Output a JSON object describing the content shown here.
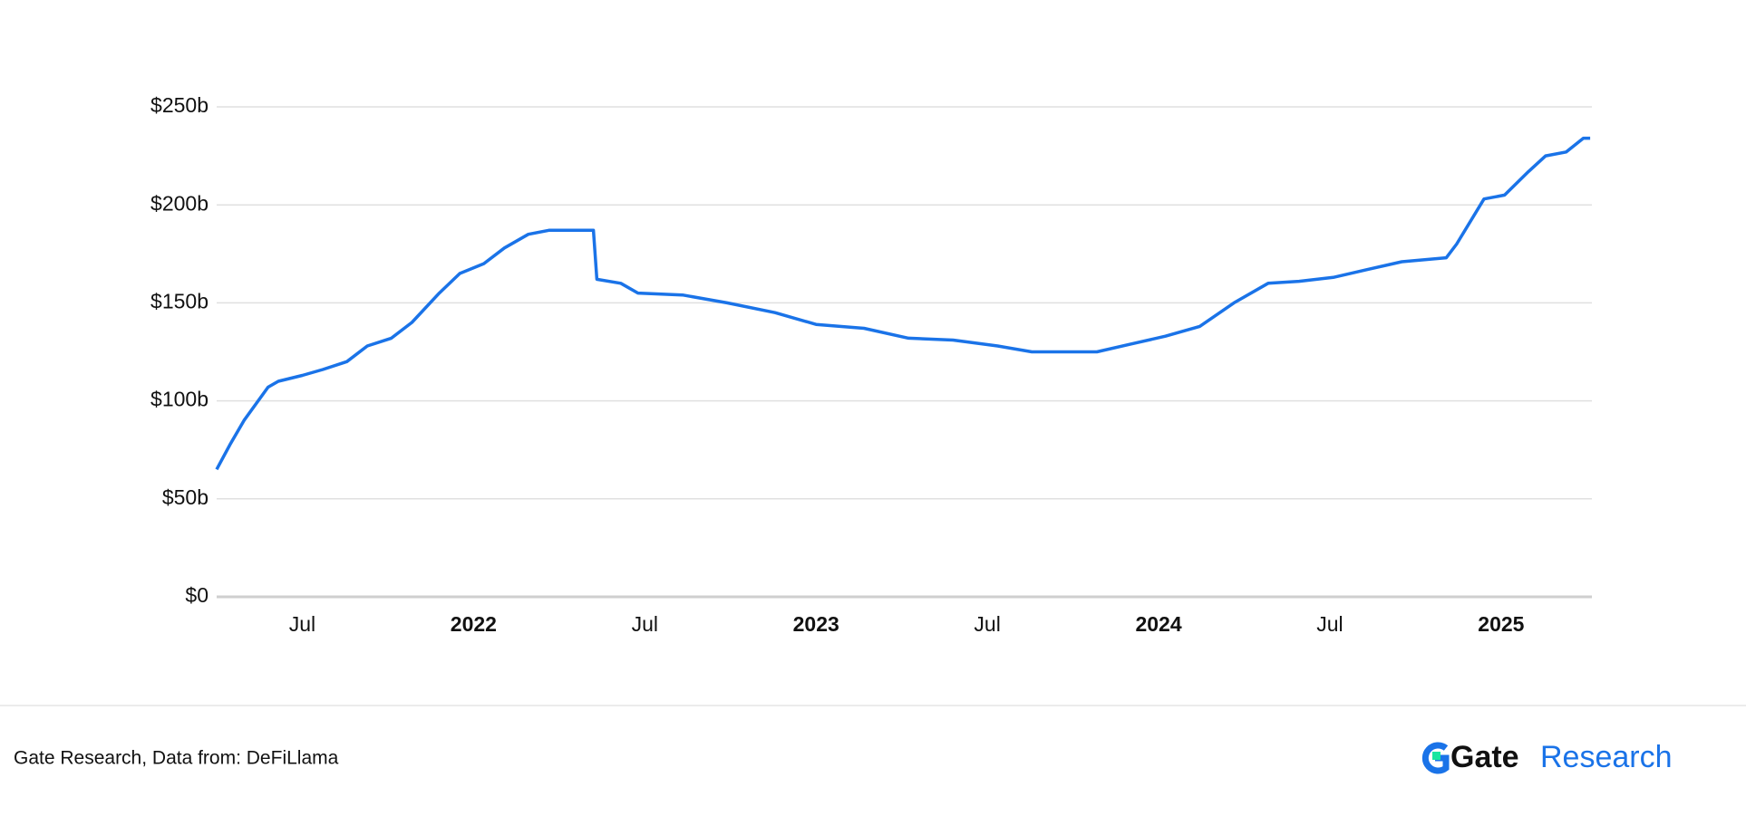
{
  "chart_data": {
    "type": "line",
    "x": [
      2021.25,
      2021.29,
      2021.33,
      2021.4,
      2021.43,
      2021.5,
      2021.56,
      2021.63,
      2021.69,
      2021.76,
      2021.82,
      2021.9,
      2021.96,
      2022.03,
      2022.09,
      2022.16,
      2022.22,
      2022.29,
      2022.35,
      2022.36,
      2022.43,
      2022.48,
      2022.61,
      2022.74,
      2022.88,
      2023.0,
      2023.14,
      2023.27,
      2023.4,
      2023.53,
      2023.63,
      2023.73,
      2023.82,
      2023.92,
      2024.02,
      2024.12,
      2024.22,
      2024.32,
      2024.41,
      2024.51,
      2024.61,
      2024.71,
      2024.84,
      2024.87,
      2024.95,
      2025.01,
      2025.08,
      2025.13,
      2025.19,
      2025.24,
      2025.26
    ],
    "values": [
      65,
      78,
      90,
      107,
      110,
      113,
      116,
      120,
      128,
      132,
      140,
      155,
      165,
      170,
      178,
      185,
      187,
      187,
      187,
      162,
      160,
      155,
      154,
      150,
      145,
      139,
      137,
      132,
      131,
      128,
      125,
      125,
      125,
      129,
      133,
      138,
      150,
      160,
      161,
      163,
      167,
      171,
      173,
      180,
      203,
      205,
      217,
      225,
      227,
      234,
      234
    ],
    "color": "#1a73e8",
    "xlim": [
      2021.25,
      2025.265
    ],
    "xticks": [
      {
        "value": 2021.5,
        "label": "Jul"
      },
      2022,
      {
        "value": 2022.5,
        "label": "Jul"
      },
      2023,
      {
        "value": 2023.5,
        "label": "Jul"
      },
      2024,
      {
        "value": 2024.5,
        "label": "Jul"
      },
      2025
    ],
    "ylim": [
      0,
      250
    ],
    "yticks": [
      {
        "value": 0,
        "label": "$0"
      },
      {
        "value": 50,
        "label": "$50b"
      },
      {
        "value": 100,
        "label": "$100b"
      },
      {
        "value": 150,
        "label": "$150b"
      },
      {
        "value": 200,
        "label": "$200b"
      },
      {
        "value": 250,
        "label": "$250b"
      }
    ],
    "grid": true
  },
  "footer": {
    "source": "Gate Research, Data from: DeFiLlama",
    "logo": {
      "brand": "Gate",
      "product": "Research"
    }
  }
}
